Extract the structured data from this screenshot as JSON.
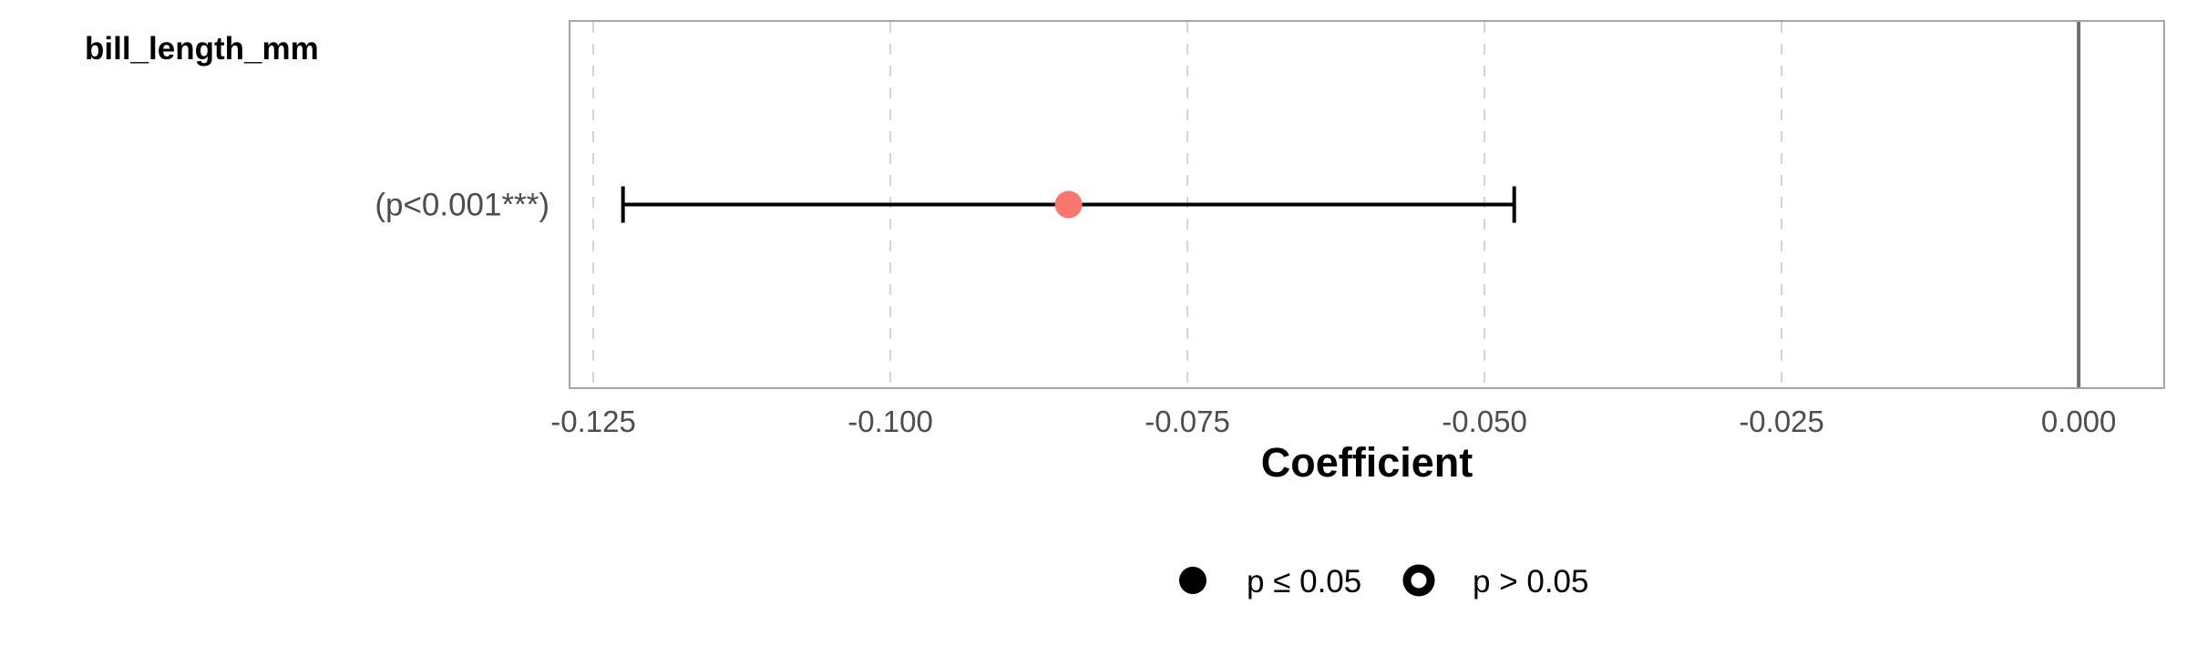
{
  "chart_data": {
    "type": "forest",
    "group_label": "bill_length_mm",
    "xlabel": "Coefficient",
    "xlim": [
      -0.127,
      0.0072
    ],
    "xticks": [
      -0.125,
      -0.1,
      -0.075,
      -0.05,
      -0.025,
      0.0
    ],
    "xtick_labels": [
      "-0.125",
      "-0.100",
      "-0.075",
      "-0.050",
      "-0.025",
      "0.000"
    ],
    "reference_line": 0.0,
    "terms": [
      {
        "label": "(p<0.001***)",
        "estimate": -0.085,
        "conf_low": -0.1225,
        "conf_high": -0.0475,
        "significant": true,
        "color": "#F8766D"
      }
    ],
    "legend": [
      {
        "label": "p ≤ 0.05",
        "shape": "filled-circle"
      },
      {
        "label": "p > 0.05",
        "shape": "open-circle"
      }
    ],
    "grid": true,
    "legend_position": "bottom"
  }
}
